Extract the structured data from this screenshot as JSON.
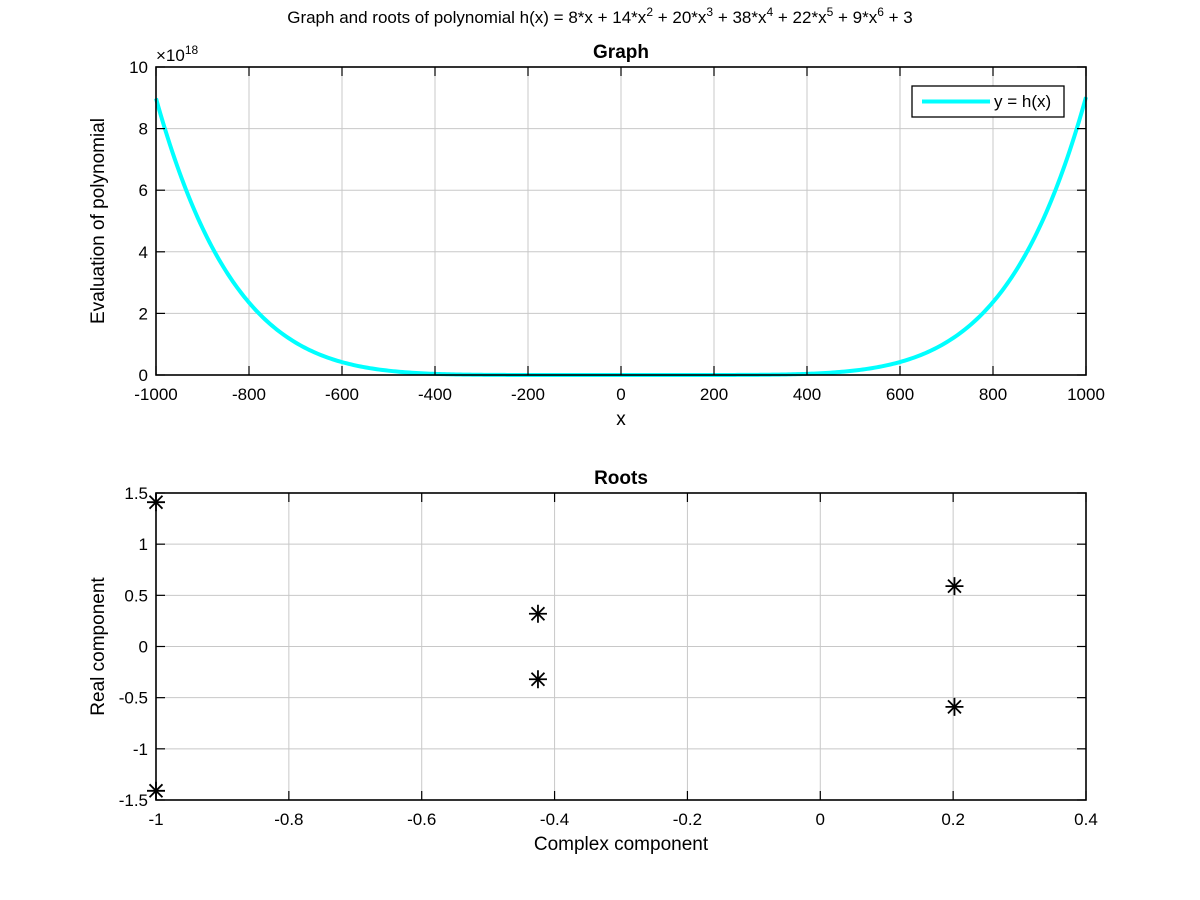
{
  "figure": {
    "suptitle_parts": [
      {
        "t": "Graph and roots of polynomial h(x) = 8*x + 14*x",
        "sup": false
      },
      {
        "t": "2",
        "sup": true
      },
      {
        "t": " + 20*x",
        "sup": false
      },
      {
        "t": "3",
        "sup": true
      },
      {
        "t": " + 38*x",
        "sup": false
      },
      {
        "t": "4",
        "sup": true
      },
      {
        "t": " + 22*x",
        "sup": false
      },
      {
        "t": "5",
        "sup": true
      },
      {
        "t": " + 9*x",
        "sup": false
      },
      {
        "t": "6",
        "sup": true
      },
      {
        "t": " + 3",
        "sup": false
      }
    ]
  },
  "chart_data": [
    {
      "type": "line",
      "title": "Graph",
      "xlabel": "x",
      "ylabel": "Evaluation of polynomial",
      "xlim": [
        -1000,
        1000
      ],
      "ylim": [
        0,
        10
      ],
      "y_exponent_label": {
        "base": "×10",
        "exp": "18"
      },
      "xticks": [
        -1000,
        -800,
        -600,
        -400,
        -200,
        0,
        200,
        400,
        600,
        800,
        1000
      ],
      "yticks": [
        0,
        2,
        4,
        6,
        8,
        10
      ],
      "grid": true,
      "legend": "top-right",
      "series": [
        {
          "name": "y = h(x)",
          "color": "#00ffff",
          "function_coefficients": {
            "x6": 9,
            "x5": 22,
            "x4": 38,
            "x3": 20,
            "x2": 14,
            "x1": 8,
            "x0": 3
          },
          "y_scale": 1e+18
        }
      ]
    },
    {
      "type": "scatter",
      "title": "Roots",
      "xlabel": "Complex component",
      "ylabel": "Real component",
      "xlim": [
        -1,
        0.4
      ],
      "ylim": [
        -1.5,
        1.5
      ],
      "xticks": [
        -1,
        -0.8,
        -0.6,
        -0.4,
        -0.2,
        0,
        0.2,
        0.4
      ],
      "yticks": [
        -1.5,
        -1,
        -0.5,
        0,
        0.5,
        1,
        1.5
      ],
      "grid": true,
      "marker": "asterisk",
      "color": "#000000",
      "points": [
        {
          "x": -1.0,
          "y": 1.41
        },
        {
          "x": -1.0,
          "y": -1.41
        },
        {
          "x": -0.425,
          "y": 0.32
        },
        {
          "x": -0.425,
          "y": -0.32
        },
        {
          "x": 0.202,
          "y": 0.59
        },
        {
          "x": 0.202,
          "y": -0.59
        }
      ]
    }
  ]
}
